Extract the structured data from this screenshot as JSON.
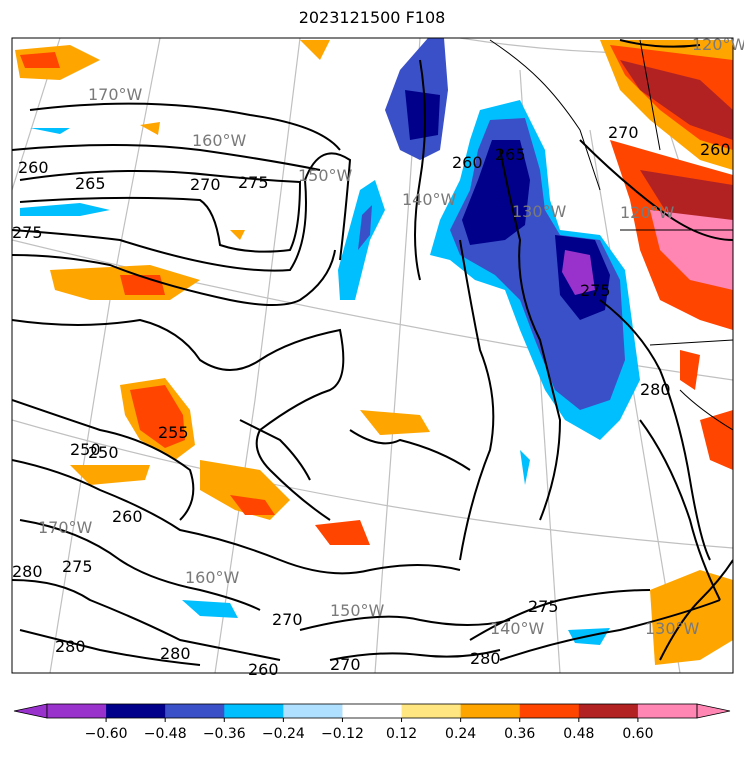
{
  "title": "2023121500 F108",
  "longitude_labels": [
    "170°W",
    "160°W",
    "150°W",
    "140°W",
    "130°W",
    "120°W",
    "170°W",
    "160°W",
    "150°W",
    "140°W",
    "130°W",
    "120°W"
  ],
  "contour_labels": [
    "260",
    "265",
    "270",
    "275",
    "275",
    "260",
    "265",
    "250",
    "250",
    "255",
    "260",
    "275",
    "280",
    "280",
    "270",
    "280",
    "275",
    "270",
    "260",
    "270",
    "275",
    "280",
    "280",
    "260"
  ],
  "colorbar": {
    "tick_labels": [
      "−0.60",
      "−0.48",
      "−0.36",
      "−0.24",
      "−0.12",
      "0.12",
      "0.24",
      "0.36",
      "0.48",
      "0.60"
    ],
    "colors": [
      "#9932cc",
      "#00008b",
      "#3a50c8",
      "#00bfff",
      "#b0e0ff",
      "#ffffff",
      "#ffe680",
      "#ffa500",
      "#ff4500",
      "#b22222",
      "#ff85b3",
      "#ff85b3"
    ]
  }
}
